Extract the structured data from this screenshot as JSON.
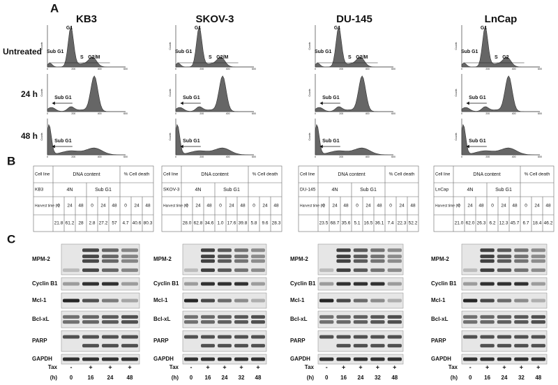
{
  "panels": [
    "A",
    "B",
    "C"
  ],
  "cell_lines": [
    "KB3",
    "SKOV-3",
    "DU-145",
    "LnCap"
  ],
  "rows": [
    "Untreated",
    "24 h",
    "48 h"
  ],
  "histograms": {
    "x_ticks": [
      "0",
      "200",
      "400",
      "600"
    ],
    "y_label": "Counts",
    "labels": [
      {
        "g1": "G1",
        "sub_g1": "Sub G1",
        "s": "S",
        "g2": "G2/M"
      },
      {
        "g1": "G1",
        "sub_g1": "Sub G1",
        "s": "S",
        "g2": "G2/M"
      },
      {
        "g1": "G1",
        "sub_g1": "Sub G1",
        "s": "S",
        "g2": "G2/M"
      },
      {
        "g1": "G1",
        "sub_g1": "Sub G1",
        "s": "S",
        "g2": "G2"
      }
    ],
    "arrow_label": "Sub G1"
  },
  "tables": {
    "headers": {
      "cell_line": "Cell line",
      "dna": "DNA content",
      "death": "% Cell death",
      "n4": "4N",
      "sub_g1": "Sub G1",
      "harvest": "Harvest time (h)",
      "times": [
        "0",
        "24",
        "48"
      ]
    },
    "values": [
      [
        "21.8",
        "61.2",
        "28",
        "2.8",
        "27.2",
        "57",
        "4.7",
        "40.6",
        "80.3"
      ],
      [
        "28.0",
        "62.8",
        "34.6",
        "1.0",
        "17.6",
        "39.8",
        "5.8",
        "9.6",
        "28.3"
      ],
      [
        "23.5",
        "68.7",
        "35.6",
        "5.1",
        "16.5",
        "36.1",
        "7.4",
        "22.3",
        "52.2"
      ],
      [
        "21.0",
        "62.0",
        "26.3",
        "6.2",
        "12.3",
        "45.7",
        "6.7",
        "18.4",
        "46.2"
      ]
    ]
  },
  "blots": {
    "proteins": [
      "MPM-2",
      "Cyclin B1",
      "Mcl-1",
      "Bcl-xL",
      "PARP",
      "GAPDH"
    ],
    "tax_label": "Tax",
    "hours_label": "(h)",
    "lanes": [
      {
        "tax": [
          "-",
          "+",
          "+",
          "+"
        ],
        "hours": [
          "0",
          "16",
          "24",
          "48"
        ]
      },
      {
        "tax": [
          "-",
          "+",
          "+",
          "+",
          "+"
        ],
        "hours": [
          "0",
          "16",
          "24",
          "32",
          "48"
        ]
      },
      {
        "tax": [
          "-",
          "+",
          "+",
          "+",
          "+"
        ],
        "hours": [
          "0",
          "16",
          "24",
          "32",
          "48"
        ]
      },
      {
        "tax": [
          "-",
          "+",
          "+",
          "+",
          "+"
        ],
        "hours": [
          "0",
          "16",
          "24",
          "32",
          "48"
        ]
      }
    ]
  }
}
